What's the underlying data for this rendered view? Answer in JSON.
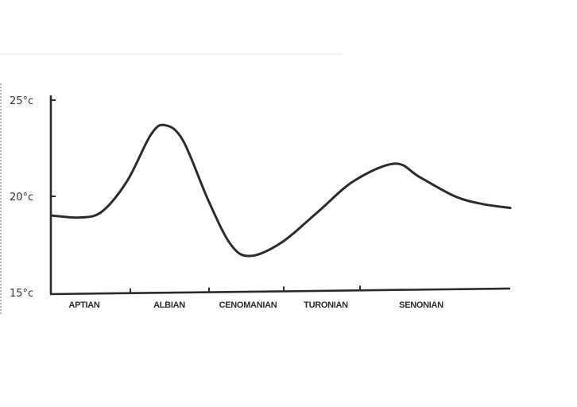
{
  "chart_data": {
    "type": "line",
    "title": "",
    "xlabel": "",
    "ylabel": "",
    "x_unit_note_hidden": null,
    "categories": [
      "APTIAN",
      "ALBIAN",
      "CENOMANIAN",
      "TURONIAN",
      "SENONIAN"
    ],
    "category_spans": [
      [
        0,
        1
      ],
      [
        1,
        2
      ],
      [
        2,
        3
      ],
      [
        3,
        4
      ],
      [
        4,
        6
      ]
    ],
    "xlim": [
      0,
      6
    ],
    "ylim": [
      15,
      25
    ],
    "yticks": [
      {
        "value": 15,
        "label": "15°c"
      },
      {
        "value": 20,
        "label": "20°c"
      },
      {
        "value": 25,
        "label": "25°c"
      }
    ],
    "grid": false,
    "legend": "none",
    "series": [
      {
        "x": [
          0.02,
          0.36,
          0.64,
          0.96,
          1.26,
          1.44,
          1.67,
          1.99,
          2.29,
          2.55,
          2.97,
          3.45,
          3.92,
          4.46,
          4.79,
          5.26,
          5.63,
          6.0
        ],
        "y": [
          19.0,
          18.9,
          19.2,
          20.8,
          23.2,
          23.7,
          22.9,
          19.8,
          17.5,
          16.9,
          17.6,
          19.2,
          20.8,
          21.7,
          21.0,
          20.0,
          19.6,
          19.4
        ],
        "color": "#2b2b2b"
      }
    ]
  }
}
